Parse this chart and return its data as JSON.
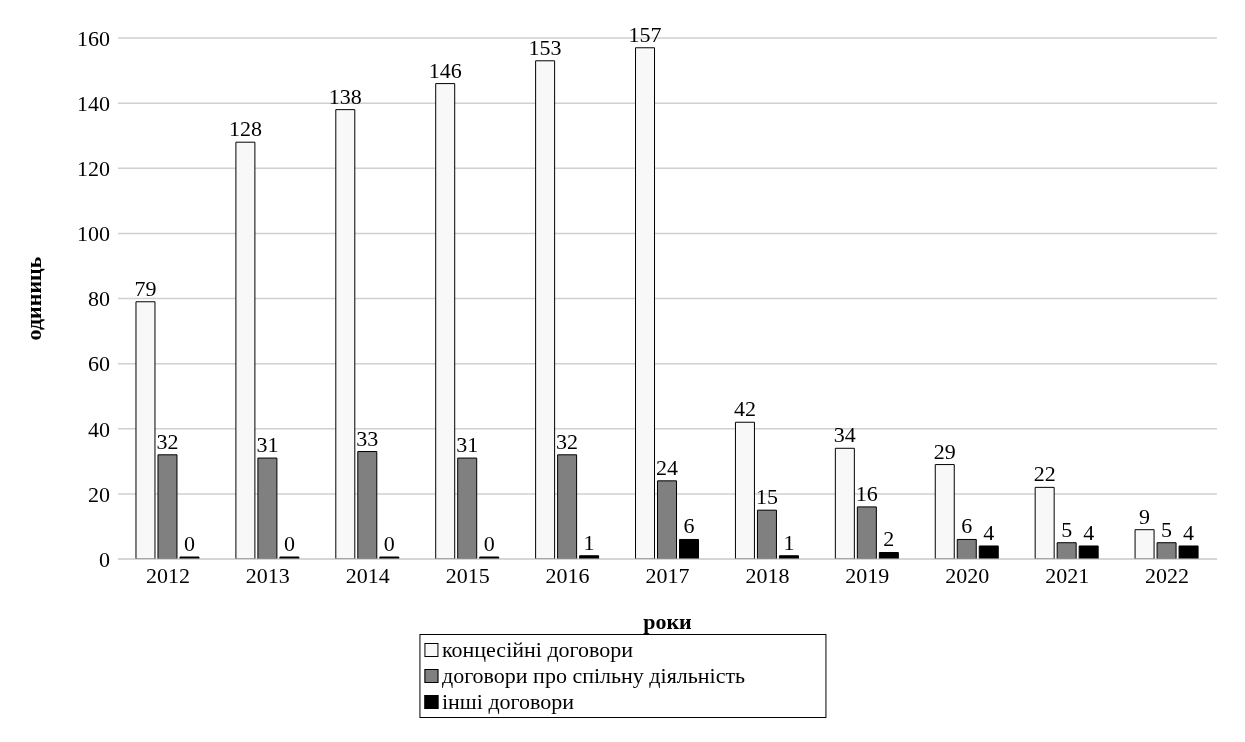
{
  "chart_data": {
    "type": "bar",
    "xlabel": "роки",
    "ylabel": "одиниць",
    "categories": [
      "2012",
      "2013",
      "2014",
      "2015",
      "2016",
      "2017",
      "2018",
      "2019",
      "2020",
      "2021",
      "2022"
    ],
    "series": [
      {
        "name": "концесійні договори",
        "color": "#f8f8f8",
        "values": [
          79,
          128,
          138,
          146,
          153,
          157,
          42,
          34,
          29,
          22,
          9
        ]
      },
      {
        "name": "договори про спільну діяльність",
        "color": "#808080",
        "values": [
          32,
          31,
          33,
          31,
          32,
          24,
          15,
          16,
          6,
          5,
          5
        ]
      },
      {
        "name": "інші договори",
        "color": "#000000",
        "values": [
          0,
          0,
          0,
          0,
          1,
          6,
          1,
          2,
          4,
          4,
          4
        ]
      }
    ],
    "ylim": [
      0,
      160
    ],
    "yticks": [
      0,
      20,
      40,
      60,
      80,
      100,
      120,
      140,
      160
    ],
    "grid": "y",
    "legend": "bottom",
    "data_labels": true
  }
}
